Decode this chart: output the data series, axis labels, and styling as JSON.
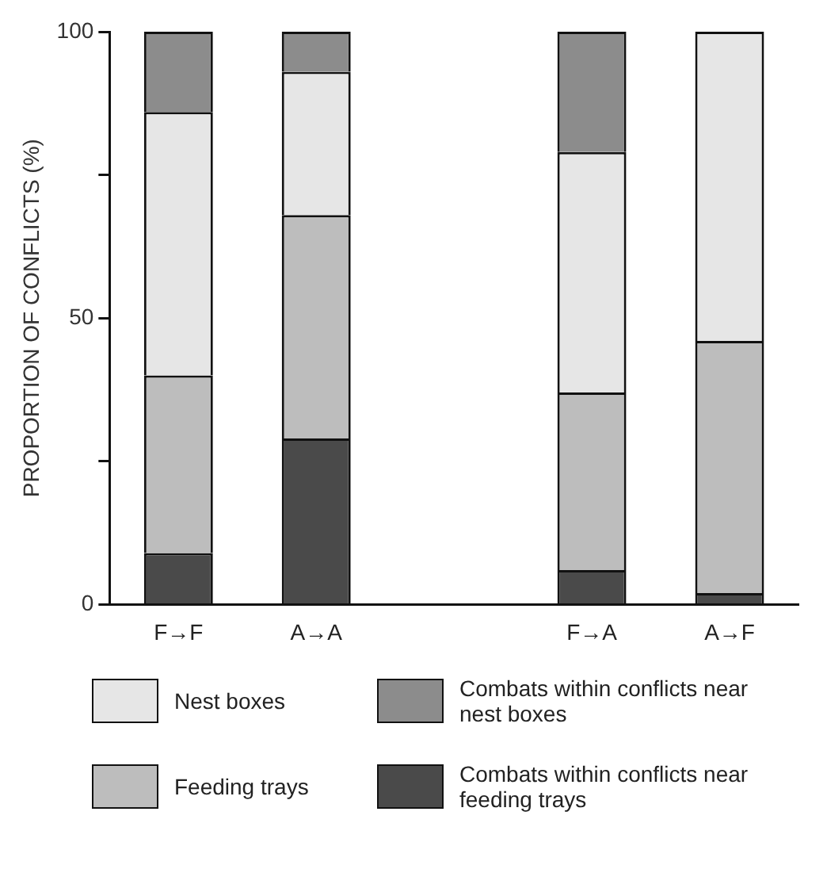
{
  "chart_data": {
    "type": "bar",
    "ylabel": "PROPORTION OF CONFLICTS (%)",
    "categories": [
      "F→F",
      "A→A",
      null,
      "F→A",
      "A→F"
    ],
    "stacked": true,
    "series": [
      {
        "name": "Combats within conflicts near  feeding trays",
        "color": "#4a4a4a",
        "values": [
          9,
          29,
          null,
          6,
          2
        ]
      },
      {
        "name": "Feeding trays",
        "color": "#bdbdbd",
        "values": [
          31,
          39,
          null,
          31,
          44
        ]
      },
      {
        "name": "Nest boxes",
        "color": "#e6e6e6",
        "values": [
          46,
          25,
          null,
          42,
          54
        ]
      },
      {
        "name": "Combats within conflicts near nest boxes",
        "color": "#8c8c8c",
        "values": [
          14,
          7,
          null,
          21,
          0
        ]
      }
    ],
    "ylim": [
      0,
      100
    ],
    "yticks": [
      0,
      {
        "value": 25,
        "label": null
      },
      50,
      {
        "value": 75,
        "label": null
      },
      100
    ],
    "grid": false,
    "legend": "bottom"
  }
}
